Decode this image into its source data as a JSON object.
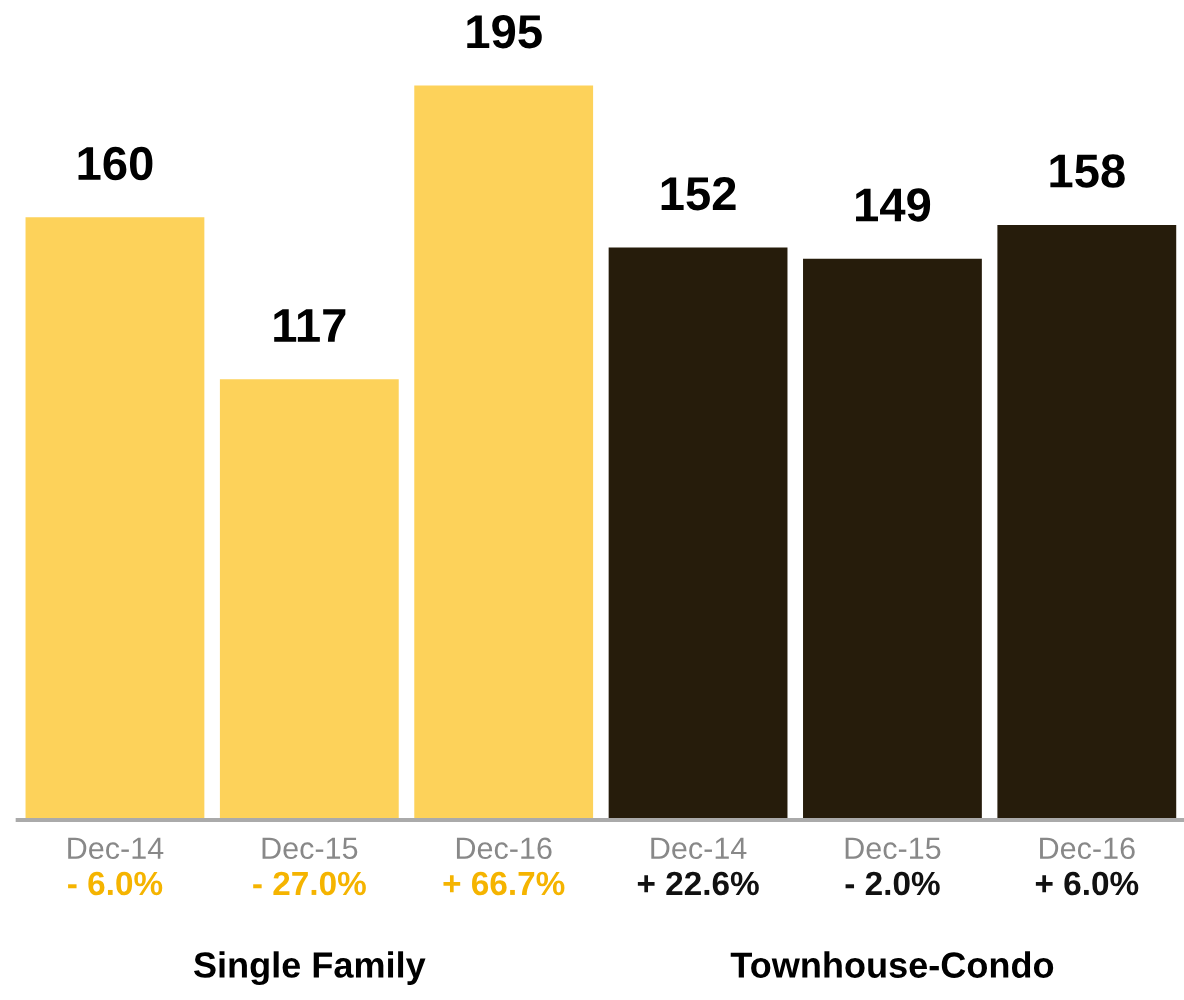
{
  "chart_data": {
    "type": "bar",
    "categories": [
      "Dec-14",
      "Dec-15",
      "Dec-16",
      "Dec-14",
      "Dec-15",
      "Dec-16"
    ],
    "values": [
      160,
      117,
      195,
      152,
      149,
      158
    ],
    "colors": [
      "#fdd25a",
      "#fdd25a",
      "#fdd25a",
      "#261c0b",
      "#261c0b",
      "#261c0b"
    ],
    "data_labels": true,
    "annotations": [
      "- 6.0%",
      "- 27.0%",
      "+ 66.7%",
      "+ 22.6%",
      "- 2.0%",
      "+ 6.0%",
      "Single Family",
      "Townhouse-Condo"
    ],
    "grid": false,
    "legend": false
  }
}
